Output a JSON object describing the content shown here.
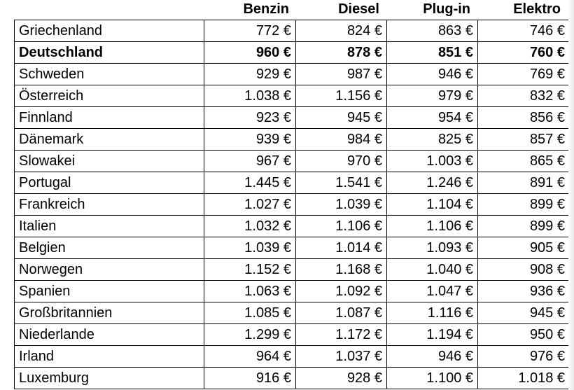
{
  "headers": [
    "Benzin",
    "Diesel",
    "Plug-in",
    "Elektro"
  ],
  "rows": [
    {
      "country": "Griechenland",
      "values": [
        "772 €",
        "824 €",
        "863 €",
        "746 €"
      ],
      "bold": false
    },
    {
      "country": "Deutschland",
      "values": [
        "960 €",
        "878 €",
        "851 €",
        "760 €"
      ],
      "bold": true
    },
    {
      "country": "Schweden",
      "values": [
        "929 €",
        "987 €",
        "946 €",
        "769 €"
      ],
      "bold": false
    },
    {
      "country": "Österreich",
      "values": [
        "1.038 €",
        "1.156 €",
        "979 €",
        "832 €"
      ],
      "bold": false
    },
    {
      "country": "Finnland",
      "values": [
        "923 €",
        "945 €",
        "954 €",
        "856 €"
      ],
      "bold": false
    },
    {
      "country": "Dänemark",
      "values": [
        "939 €",
        "984 €",
        "825 €",
        "857 €"
      ],
      "bold": false
    },
    {
      "country": "Slowakei",
      "values": [
        "967 €",
        "970 €",
        "1.003 €",
        "865 €"
      ],
      "bold": false
    },
    {
      "country": "Portugal",
      "values": [
        "1.445 €",
        "1.541 €",
        "1.246 €",
        "891 €"
      ],
      "bold": false
    },
    {
      "country": "Frankreich",
      "values": [
        "1.027 €",
        "1.039 €",
        "1.104 €",
        "899 €"
      ],
      "bold": false
    },
    {
      "country": "Italien",
      "values": [
        "1.032 €",
        "1.106 €",
        "1.106 €",
        "899 €"
      ],
      "bold": false
    },
    {
      "country": "Belgien",
      "values": [
        "1.039 €",
        "1.014 €",
        "1.093 €",
        "905 €"
      ],
      "bold": false
    },
    {
      "country": "Norwegen",
      "values": [
        "1.152 €",
        "1.168 €",
        "1.040 €",
        "908 €"
      ],
      "bold": false
    },
    {
      "country": "Spanien",
      "values": [
        "1.063 €",
        "1.092 €",
        "1.047 €",
        "936 €"
      ],
      "bold": false
    },
    {
      "country": "Großbritannien",
      "values": [
        "1.085 €",
        "1.087 €",
        "1.116 €",
        "945 €"
      ],
      "bold": false
    },
    {
      "country": "Niederlande",
      "values": [
        "1.299 €",
        "1.172 €",
        "1.194 €",
        "950 €"
      ],
      "bold": false
    },
    {
      "country": "Irland",
      "values": [
        "964 €",
        "1.037 €",
        "946 €",
        "976 €"
      ],
      "bold": false
    },
    {
      "country": "Luxemburg",
      "values": [
        "916 €",
        "928 €",
        "1.100 €",
        "1.018 €"
      ],
      "bold": false
    }
  ]
}
